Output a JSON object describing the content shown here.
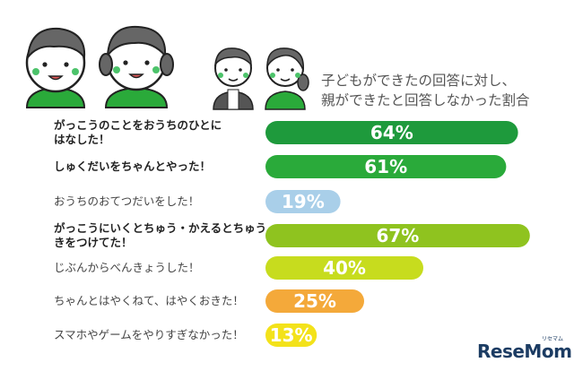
{
  "chart_data": {
    "type": "bar",
    "orientation": "horizontal",
    "title": [
      "子どもができたの回答に対し、",
      "親ができたと回答しなかった割合"
    ],
    "categories": [
      [
        "がっこうのことをおうちのひとに",
        "はなした！"
      ],
      [
        "しゅくだいをちゃんとやった！"
      ],
      [
        "おうちのおてつだいをした！"
      ],
      [
        "がっこうにいくとちゅう・かえるとちゅう、",
        "きをつけてた！"
      ],
      [
        "じぶんからべんきょうした！"
      ],
      [
        "ちゃんとはやくねて、はやくおきた！"
      ],
      [
        "スマホやゲームをやりすぎなかった！"
      ]
    ],
    "values": [
      64,
      61,
      19,
      67,
      40,
      25,
      13
    ],
    "value_labels": [
      "64%",
      "61%",
      "19%",
      "67%",
      "40%",
      "25%",
      "13%"
    ],
    "bold_categories": [
      true,
      true,
      false,
      true,
      false,
      false,
      false
    ],
    "colors": [
      "#1e9a3c",
      "#2aaa3a",
      "#a9cfe9",
      "#8fc31f",
      "#c7dc1e",
      "#f4a93a",
      "#f3e21a"
    ],
    "xlim": [
      0,
      100
    ],
    "grid": false,
    "legend": "none"
  },
  "logo": {
    "main": "ReseMom",
    "sub": "リセマム"
  }
}
